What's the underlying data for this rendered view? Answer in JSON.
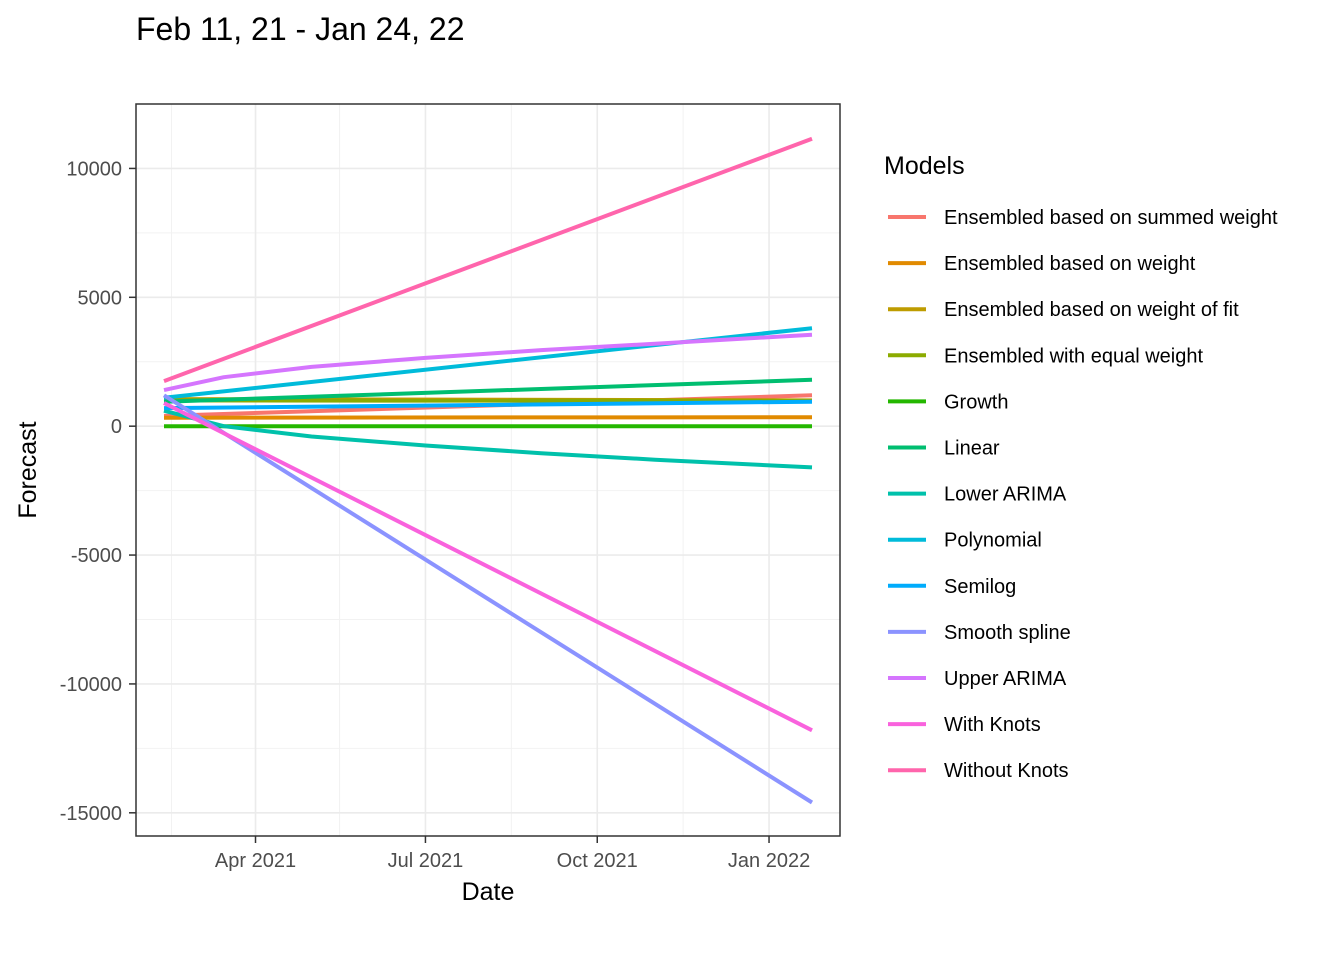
{
  "chart_data": {
    "type": "line",
    "title": "Feb 11, 21 - Jan 24, 22",
    "xlabel": "Date",
    "ylabel": "Forecast",
    "x_range": [
      "2021-02-11",
      "2022-01-24"
    ],
    "xlim": [
      "2021-01-27",
      "2022-02-08"
    ],
    "ylim": [
      -15900,
      12500
    ],
    "x_ticks": [
      {
        "date": "2021-04-01",
        "label": "Apr 2021"
      },
      {
        "date": "2021-07-01",
        "label": "Jul 2021"
      },
      {
        "date": "2021-10-01",
        "label": "Oct 2021"
      },
      {
        "date": "2022-01-01",
        "label": "Jan 2022"
      }
    ],
    "x_minor_ticks": [
      "2021-02-15",
      "2021-05-16",
      "2021-08-16",
      "2021-11-16"
    ],
    "y_ticks": [
      {
        "value": 10000,
        "label": "10000"
      },
      {
        "value": 5000,
        "label": "5000"
      },
      {
        "value": 0,
        "label": "0"
      },
      {
        "value": -5000,
        "label": "-5000"
      },
      {
        "value": -10000,
        "label": "-10000"
      },
      {
        "value": -15000,
        "label": "-15000"
      }
    ],
    "y_minor_ticks": [
      12500,
      7500,
      2500,
      -2500,
      -7500,
      -12500
    ],
    "grid": true,
    "legend_title": "Models",
    "legend_position": "right",
    "series": [
      {
        "name": "Ensembled based on summed weight",
        "color": "#F8766D",
        "x": [
          "2021-02-11",
          "2022-01-24"
        ],
        "y": [
          400,
          1200
        ]
      },
      {
        "name": "Ensembled based on weight",
        "color": "#E18A00",
        "x": [
          "2021-02-11",
          "2022-01-24"
        ],
        "y": [
          330,
          350
        ]
      },
      {
        "name": "Ensembled based on weight of fit",
        "color": "#BE9C00",
        "x": [
          "2021-02-11",
          "2022-01-24"
        ],
        "y": [
          1050,
          1000
        ]
      },
      {
        "name": "Ensembled with equal weight",
        "color": "#8CAB00",
        "x": [
          "2021-02-11",
          "2022-01-24"
        ],
        "y": [
          1000,
          980
        ]
      },
      {
        "name": "Growth",
        "color": "#24B700",
        "x": [
          "2021-02-11",
          "2022-01-24"
        ],
        "y": [
          0,
          0
        ]
      },
      {
        "name": "Linear",
        "color": "#00BE70",
        "x": [
          "2021-02-11",
          "2022-01-24"
        ],
        "y": [
          950,
          1800
        ]
      },
      {
        "name": "Lower ARIMA",
        "color": "#00C1AB",
        "x": [
          "2021-02-11",
          "2021-03-15",
          "2021-05-01",
          "2021-07-01",
          "2021-09-01",
          "2021-11-01",
          "2022-01-24"
        ],
        "y": [
          600,
          0,
          -400,
          -750,
          -1050,
          -1300,
          -1600
        ]
      },
      {
        "name": "Polynomial",
        "color": "#00BBDA",
        "x": [
          "2021-02-11",
          "2022-01-24"
        ],
        "y": [
          1100,
          3800
        ]
      },
      {
        "name": "Semilog",
        "color": "#00ACFC",
        "x": [
          "2021-02-11",
          "2022-01-24"
        ],
        "y": [
          700,
          950
        ]
      },
      {
        "name": "Smooth spline",
        "color": "#8B93FF",
        "x": [
          "2021-02-11",
          "2022-01-24"
        ],
        "y": [
          1200,
          -14600
        ]
      },
      {
        "name": "Upper ARIMA",
        "color": "#D575FE",
        "x": [
          "2021-02-11",
          "2021-03-15",
          "2021-05-01",
          "2021-07-01",
          "2021-09-01",
          "2021-11-01",
          "2022-01-24"
        ],
        "y": [
          1400,
          1900,
          2300,
          2650,
          2950,
          3200,
          3550
        ]
      },
      {
        "name": "With Knots",
        "color": "#F962DD",
        "x": [
          "2021-02-11",
          "2022-01-24"
        ],
        "y": [
          900,
          -11800
        ]
      },
      {
        "name": "Without Knots",
        "color": "#FF65AC",
        "x": [
          "2021-02-11",
          "2022-01-24"
        ],
        "y": [
          1750,
          11150
        ]
      }
    ]
  }
}
